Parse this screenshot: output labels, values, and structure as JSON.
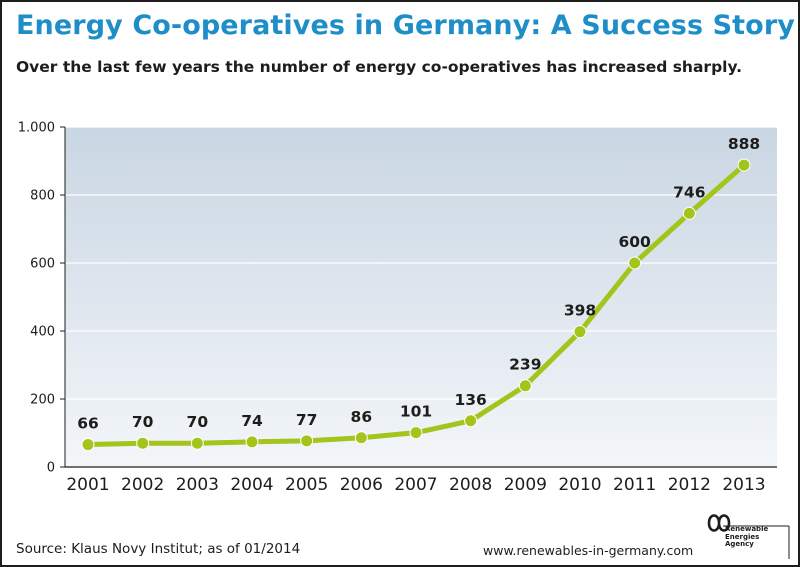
{
  "header": {
    "title": "Energy Co-operatives in Germany: A Success Story",
    "subtitle": "Over the last few years the number of energy co-operatives has increased sharply."
  },
  "footer": {
    "source": "Source: Klaus Novy Institut; as of 01/2014",
    "website": "www.renewables-in-germany.com",
    "logo": {
      "icon": "infinity-icon",
      "lines": [
        "Renewable",
        "Energies",
        "Agency"
      ]
    }
  },
  "colors": {
    "title": "#1e8ec8",
    "line": "#a3c41a",
    "plot_bg_top": "#c9d6e3",
    "plot_bg_bottom": "#f3f6f9",
    "text": "#1d1d1b"
  },
  "chart_data": {
    "type": "line",
    "x": [
      "2001",
      "2002",
      "2003",
      "2004",
      "2005",
      "2006",
      "2007",
      "2008",
      "2009",
      "2010",
      "2011",
      "2012",
      "2013"
    ],
    "values": [
      66,
      70,
      70,
      74,
      77,
      86,
      101,
      136,
      239,
      398,
      600,
      746,
      888
    ],
    "data_labels": [
      "66",
      "70",
      "70",
      "74",
      "77",
      "86",
      "101",
      "136",
      "239",
      "398",
      "600",
      "746",
      "888"
    ],
    "ylim": [
      0,
      1000
    ],
    "yticks": [
      0,
      200,
      400,
      600,
      800,
      1000
    ],
    "ytick_labels": [
      "0",
      "200",
      "400",
      "600",
      "800",
      "1.000"
    ],
    "grid": true,
    "legend": "none"
  }
}
